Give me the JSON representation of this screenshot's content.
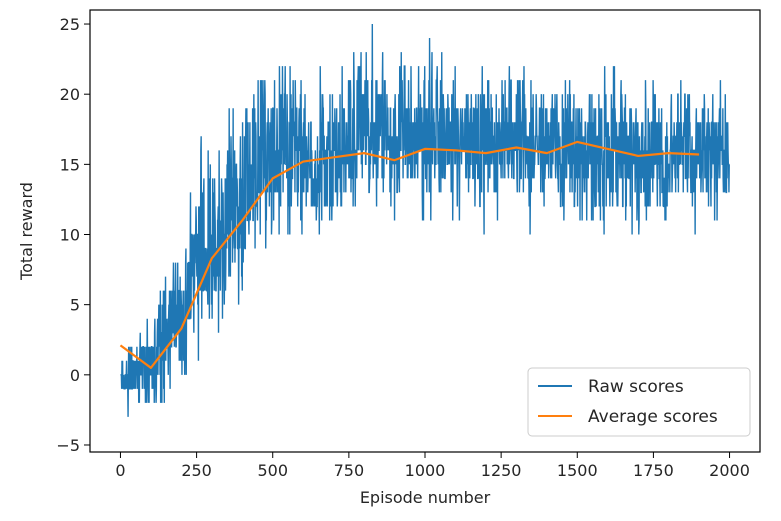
{
  "chart_data": {
    "type": "line",
    "title": "",
    "xlabel": "Episode number",
    "ylabel": "Total reward",
    "xlim": [
      -100,
      2100
    ],
    "ylim": [
      -5.5,
      26
    ],
    "xticks": [
      0,
      250,
      500,
      750,
      1000,
      1250,
      1500,
      1750,
      2000
    ],
    "yticks": [
      -5,
      0,
      5,
      10,
      15,
      20,
      25
    ],
    "grid": false,
    "legend_position": "lower-right",
    "series": [
      {
        "name": "Raw scores",
        "color": "#1f77b4",
        "x_start": 0,
        "x_step": 1,
        "count": 2000,
        "noisy": true,
        "envelope": {
          "x": [
            0,
            50,
            100,
            150,
            200,
            250,
            300,
            350,
            400,
            450,
            500,
            600,
            700,
            800,
            900,
            1000,
            1100,
            1200,
            1300,
            1400,
            1500,
            1600,
            1700,
            1800,
            1900,
            2000
          ],
          "min": [
            -3,
            -3,
            -4,
            -3,
            -3,
            0,
            1,
            2,
            4,
            6,
            8,
            8,
            8,
            10,
            10,
            10,
            10,
            10,
            10,
            10,
            8,
            8,
            8,
            9,
            10,
            10
          ],
          "max": [
            2,
            3,
            5,
            9,
            13,
            17,
            18,
            20,
            22,
            23,
            23,
            24,
            22,
            25,
            24,
            25,
            24,
            23,
            24,
            22,
            24,
            23,
            23,
            22,
            22,
            21
          ]
        }
      },
      {
        "name": "Average scores",
        "color": "#ff7f0e",
        "x": [
          0,
          100,
          200,
          300,
          400,
          500,
          600,
          700,
          800,
          900,
          1000,
          1100,
          1200,
          1300,
          1400,
          1500,
          1600,
          1700,
          1800,
          1900
        ],
        "values": [
          2.1,
          0.5,
          3.3,
          8.3,
          11.0,
          14.0,
          15.2,
          15.5,
          15.8,
          15.3,
          16.1,
          16.0,
          15.8,
          16.2,
          15.8,
          16.6,
          16.1,
          15.6,
          15.8,
          15.7
        ]
      }
    ]
  }
}
